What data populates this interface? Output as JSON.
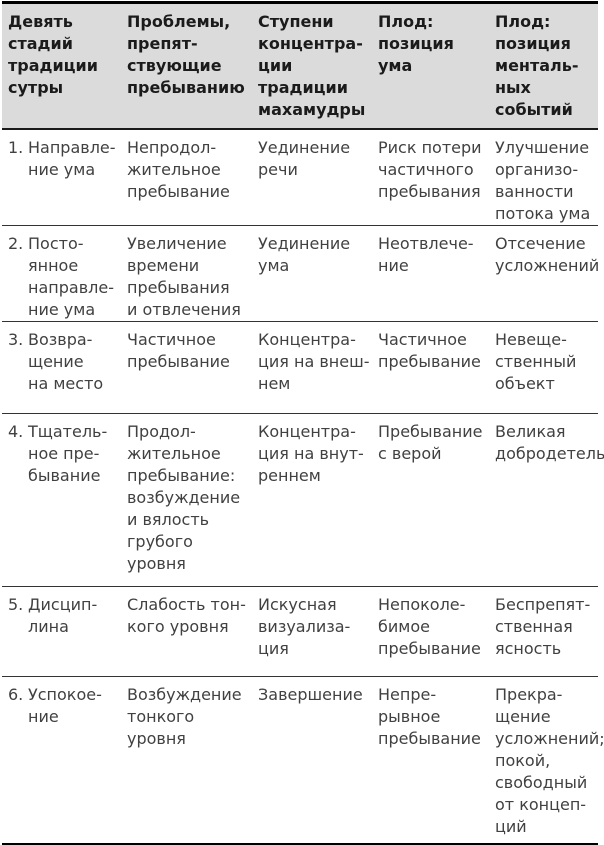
{
  "colors": {
    "header_bg": "#dbdbdb",
    "header_text": "#1b1b1b",
    "body_text": "#414141",
    "rule": "#000000",
    "divider": "#333333"
  },
  "table": {
    "headers": [
      "Девять\nстадий\nтрадиции\nсутры",
      "Проблемы,\nпрепят-\nствующие\nпребыванию",
      "Ступени\nконцентра-\nции\nтрадиции\nмахамудры",
      "Плод:\nпозиция\nума",
      "Плод:\nпозиция\nменталь-\nных\nсобытий"
    ],
    "rows": [
      {
        "num": "1.",
        "cells": [
          "Направле-\nние ума",
          "Непродол-\nжительное\nпребывание",
          "Уединение\nречи",
          "Риск потери\nчастичного\nпребывания",
          "Улучшение\nорганизо-\nванности\nпотока ума"
        ]
      },
      {
        "num": "2.",
        "cells": [
          "Посто-\nянное\nнаправле-\nние ума",
          "Увеличение\nвремени\nпребывания\nи отвлечения",
          "Уединение\nума",
          "Неотвлече-\nние",
          "Отсечение\nусложнений"
        ]
      },
      {
        "num": "3.",
        "cells": [
          "Возвра-\nщение\nна место",
          "Частичное\nпребывание",
          "Концентра-\nция на внеш-\nнем",
          "Частичное\nпребывание",
          "Невеще-\nственный\nобъект"
        ]
      },
      {
        "num": "4.",
        "cells": [
          "Тщатель-\nное пре-\nбывание",
          "Продол-\nжительное\nпребывание:\nвозбуждение\nи вялость\nгрубого\nуровня",
          "Концентра-\nция на внут-\nреннем",
          "Пребывание\nс верой",
          "Великая\nдобродетель"
        ]
      },
      {
        "num": "5.",
        "cells": [
          "Дисцип-\nлина",
          "Слабость тон-\nкого уровня",
          "Искусная\nвизуализа-\nция",
          "Непоколе-\nбимое\nпребывание",
          "Беспрепят-\nственная\nясность"
        ]
      },
      {
        "num": "6.",
        "cells": [
          "Успокое-\nние",
          "Возбуждение\nтонкого\nуровня",
          "Завершение",
          "Непре-\nрывное\nпребывание",
          "Прекра-\nщение\nусложнений;\nпокой,\nсвободный\nот концеп-\nций"
        ]
      }
    ]
  }
}
